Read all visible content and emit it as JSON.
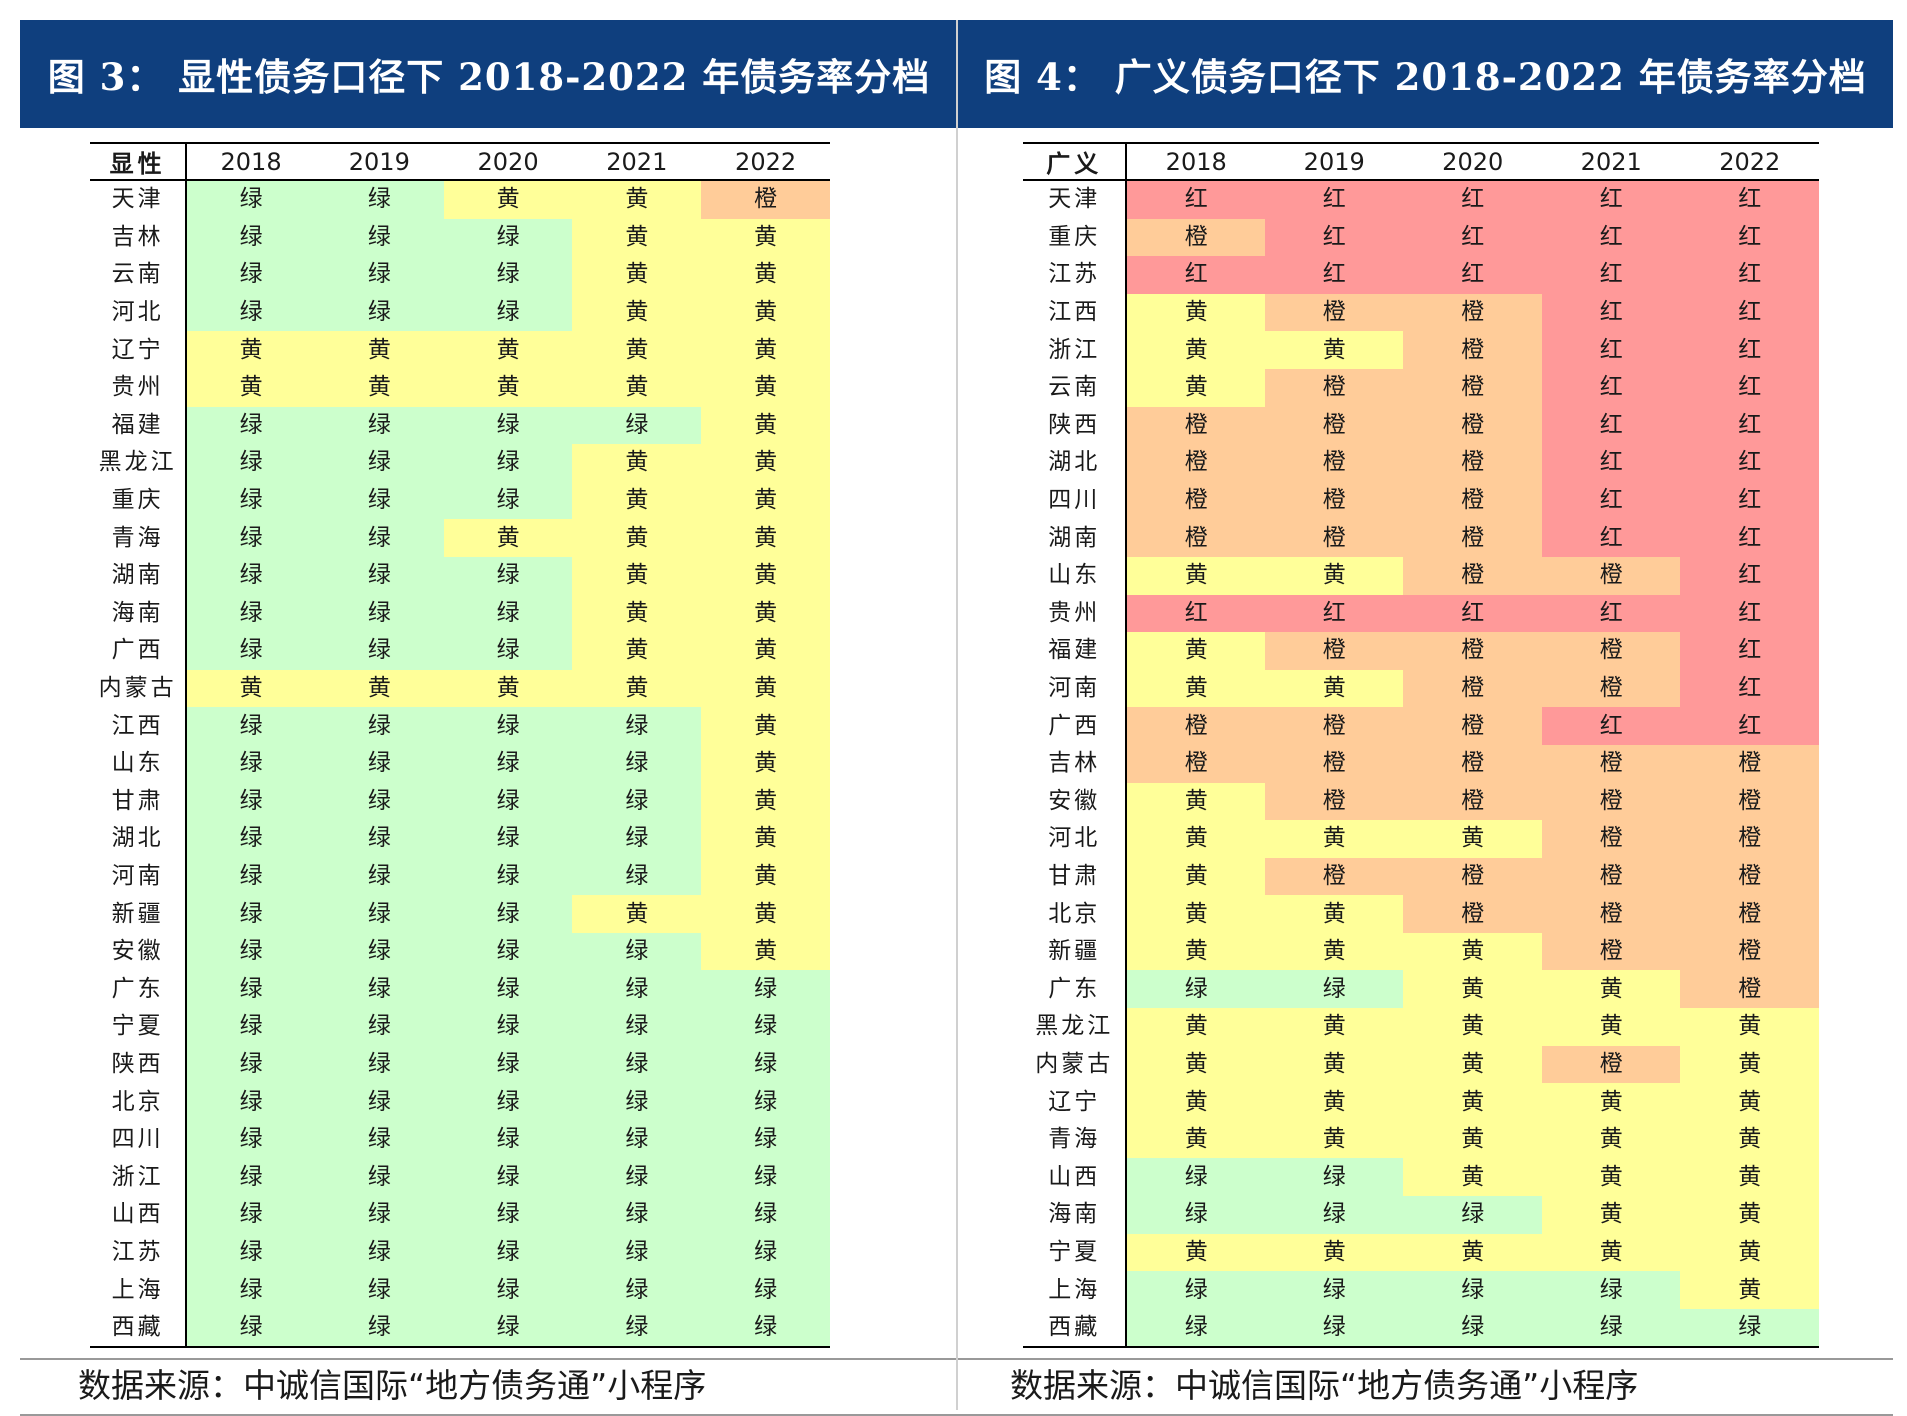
{
  "colors": {
    "绿": "#ccffcc",
    "黄": "#ffff99",
    "橙": "#ffcc99",
    "红": "#ff9999",
    "title_bg": "#0f3f7e"
  },
  "chart_data": [
    {
      "type": "table",
      "title": "图 3： 显性债务口径下 2018-2022 年债务率分档",
      "row_header": "显性",
      "columns": [
        "2018",
        "2019",
        "2020",
        "2021",
        "2022"
      ],
      "rows": [
        {
          "label": "天津",
          "values": [
            "绿",
            "绿",
            "黄",
            "黄",
            "橙"
          ]
        },
        {
          "label": "吉林",
          "values": [
            "绿",
            "绿",
            "绿",
            "黄",
            "黄"
          ]
        },
        {
          "label": "云南",
          "values": [
            "绿",
            "绿",
            "绿",
            "黄",
            "黄"
          ]
        },
        {
          "label": "河北",
          "values": [
            "绿",
            "绿",
            "绿",
            "黄",
            "黄"
          ]
        },
        {
          "label": "辽宁",
          "values": [
            "黄",
            "黄",
            "黄",
            "黄",
            "黄"
          ]
        },
        {
          "label": "贵州",
          "values": [
            "黄",
            "黄",
            "黄",
            "黄",
            "黄"
          ]
        },
        {
          "label": "福建",
          "values": [
            "绿",
            "绿",
            "绿",
            "绿",
            "黄"
          ]
        },
        {
          "label": "黑龙江",
          "values": [
            "绿",
            "绿",
            "绿",
            "黄",
            "黄"
          ]
        },
        {
          "label": "重庆",
          "values": [
            "绿",
            "绿",
            "绿",
            "黄",
            "黄"
          ]
        },
        {
          "label": "青海",
          "values": [
            "绿",
            "绿",
            "黄",
            "黄",
            "黄"
          ]
        },
        {
          "label": "湖南",
          "values": [
            "绿",
            "绿",
            "绿",
            "黄",
            "黄"
          ]
        },
        {
          "label": "海南",
          "values": [
            "绿",
            "绿",
            "绿",
            "黄",
            "黄"
          ]
        },
        {
          "label": "广西",
          "values": [
            "绿",
            "绿",
            "绿",
            "黄",
            "黄"
          ]
        },
        {
          "label": "内蒙古",
          "values": [
            "黄",
            "黄",
            "黄",
            "黄",
            "黄"
          ]
        },
        {
          "label": "江西",
          "values": [
            "绿",
            "绿",
            "绿",
            "绿",
            "黄"
          ]
        },
        {
          "label": "山东",
          "values": [
            "绿",
            "绿",
            "绿",
            "绿",
            "黄"
          ]
        },
        {
          "label": "甘肃",
          "values": [
            "绿",
            "绿",
            "绿",
            "绿",
            "黄"
          ]
        },
        {
          "label": "湖北",
          "values": [
            "绿",
            "绿",
            "绿",
            "绿",
            "黄"
          ]
        },
        {
          "label": "河南",
          "values": [
            "绿",
            "绿",
            "绿",
            "绿",
            "黄"
          ]
        },
        {
          "label": "新疆",
          "values": [
            "绿",
            "绿",
            "绿",
            "黄",
            "黄"
          ]
        },
        {
          "label": "安徽",
          "values": [
            "绿",
            "绿",
            "绿",
            "绿",
            "黄"
          ]
        },
        {
          "label": "广东",
          "values": [
            "绿",
            "绿",
            "绿",
            "绿",
            "绿"
          ]
        },
        {
          "label": "宁夏",
          "values": [
            "绿",
            "绿",
            "绿",
            "绿",
            "绿"
          ]
        },
        {
          "label": "陕西",
          "values": [
            "绿",
            "绿",
            "绿",
            "绿",
            "绿"
          ]
        },
        {
          "label": "北京",
          "values": [
            "绿",
            "绿",
            "绿",
            "绿",
            "绿"
          ]
        },
        {
          "label": "四川",
          "values": [
            "绿",
            "绿",
            "绿",
            "绿",
            "绿"
          ]
        },
        {
          "label": "浙江",
          "values": [
            "绿",
            "绿",
            "绿",
            "绿",
            "绿"
          ]
        },
        {
          "label": "山西",
          "values": [
            "绿",
            "绿",
            "绿",
            "绿",
            "绿"
          ]
        },
        {
          "label": "江苏",
          "values": [
            "绿",
            "绿",
            "绿",
            "绿",
            "绿"
          ]
        },
        {
          "label": "上海",
          "values": [
            "绿",
            "绿",
            "绿",
            "绿",
            "绿"
          ]
        },
        {
          "label": "西藏",
          "values": [
            "绿",
            "绿",
            "绿",
            "绿",
            "绿"
          ]
        }
      ],
      "source": "数据来源：中诚信国际“地方债务通”小程序"
    },
    {
      "type": "table",
      "title": "图 4： 广义债务口径下 2018-2022 年债务率分档",
      "row_header": "广义",
      "columns": [
        "2018",
        "2019",
        "2020",
        "2021",
        "2022"
      ],
      "rows": [
        {
          "label": "天津",
          "values": [
            "红",
            "红",
            "红",
            "红",
            "红"
          ]
        },
        {
          "label": "重庆",
          "values": [
            "橙",
            "红",
            "红",
            "红",
            "红"
          ]
        },
        {
          "label": "江苏",
          "values": [
            "红",
            "红",
            "红",
            "红",
            "红"
          ]
        },
        {
          "label": "江西",
          "values": [
            "黄",
            "橙",
            "橙",
            "红",
            "红"
          ]
        },
        {
          "label": "浙江",
          "values": [
            "黄",
            "黄",
            "橙",
            "红",
            "红"
          ]
        },
        {
          "label": "云南",
          "values": [
            "黄",
            "橙",
            "橙",
            "红",
            "红"
          ]
        },
        {
          "label": "陕西",
          "values": [
            "橙",
            "橙",
            "橙",
            "红",
            "红"
          ]
        },
        {
          "label": "湖北",
          "values": [
            "橙",
            "橙",
            "橙",
            "红",
            "红"
          ]
        },
        {
          "label": "四川",
          "values": [
            "橙",
            "橙",
            "橙",
            "红",
            "红"
          ]
        },
        {
          "label": "湖南",
          "values": [
            "橙",
            "橙",
            "橙",
            "红",
            "红"
          ]
        },
        {
          "label": "山东",
          "values": [
            "黄",
            "黄",
            "橙",
            "橙",
            "红"
          ]
        },
        {
          "label": "贵州",
          "values": [
            "红",
            "红",
            "红",
            "红",
            "红"
          ]
        },
        {
          "label": "福建",
          "values": [
            "黄",
            "橙",
            "橙",
            "橙",
            "红"
          ]
        },
        {
          "label": "河南",
          "values": [
            "黄",
            "黄",
            "橙",
            "橙",
            "红"
          ]
        },
        {
          "label": "广西",
          "values": [
            "橙",
            "橙",
            "橙",
            "红",
            "红"
          ]
        },
        {
          "label": "吉林",
          "values": [
            "橙",
            "橙",
            "橙",
            "橙",
            "橙"
          ]
        },
        {
          "label": "安徽",
          "values": [
            "黄",
            "橙",
            "橙",
            "橙",
            "橙"
          ]
        },
        {
          "label": "河北",
          "values": [
            "黄",
            "黄",
            "黄",
            "橙",
            "橙"
          ]
        },
        {
          "label": "甘肃",
          "values": [
            "黄",
            "橙",
            "橙",
            "橙",
            "橙"
          ]
        },
        {
          "label": "北京",
          "values": [
            "黄",
            "黄",
            "橙",
            "橙",
            "橙"
          ]
        },
        {
          "label": "新疆",
          "values": [
            "黄",
            "黄",
            "黄",
            "橙",
            "橙"
          ]
        },
        {
          "label": "广东",
          "values": [
            "绿",
            "绿",
            "黄",
            "黄",
            "橙"
          ]
        },
        {
          "label": "黑龙江",
          "values": [
            "黄",
            "黄",
            "黄",
            "黄",
            "黄"
          ]
        },
        {
          "label": "内蒙古",
          "values": [
            "黄",
            "黄",
            "黄",
            "橙",
            "黄"
          ]
        },
        {
          "label": "辽宁",
          "values": [
            "黄",
            "黄",
            "黄",
            "黄",
            "黄"
          ]
        },
        {
          "label": "青海",
          "values": [
            "黄",
            "黄",
            "黄",
            "黄",
            "黄"
          ]
        },
        {
          "label": "山西",
          "values": [
            "绿",
            "绿",
            "黄",
            "黄",
            "黄"
          ]
        },
        {
          "label": "海南",
          "values": [
            "绿",
            "绿",
            "绿",
            "黄",
            "黄"
          ]
        },
        {
          "label": "宁夏",
          "values": [
            "黄",
            "黄",
            "黄",
            "黄",
            "黄"
          ]
        },
        {
          "label": "上海",
          "values": [
            "绿",
            "绿",
            "绿",
            "绿",
            "黄"
          ]
        },
        {
          "label": "西藏",
          "values": [
            "绿",
            "绿",
            "绿",
            "绿",
            "绿"
          ]
        }
      ],
      "source": "数据来源：中诚信国际“地方债务通”小程序"
    }
  ]
}
